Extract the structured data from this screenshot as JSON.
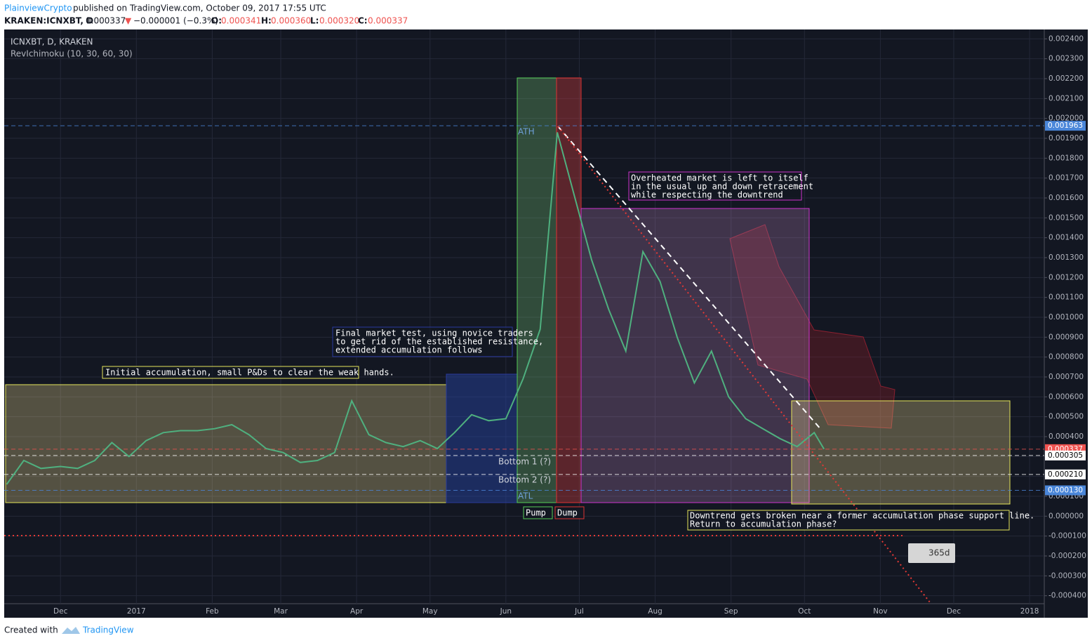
{
  "header": {
    "author": "PlainviewCrypto",
    "published": "published on TradingView.com, October 09, 2017 17:55 UTC",
    "symbol": "KRAKEN:ICNXBT, D",
    "last": "0.000337",
    "arrow": "▼",
    "change": "−0.000001 (−0.3%)",
    "o_label": "O:",
    "o": "0.000341",
    "h_label": "H:",
    "h": "0.000360",
    "l_label": "L:",
    "l": "0.000320",
    "c_label": "C:",
    "c": "0.000337"
  },
  "footer": {
    "created": "Created with",
    "brand": "TradingView"
  },
  "chart_data": {
    "type": "line",
    "title": "ICNXBT, D, KRAKEN",
    "subtitle": "RevIchimoku (10, 30, 60, 30)",
    "color": "#4fb07f",
    "x": [
      -22,
      -15,
      -8,
      0,
      7,
      14,
      21,
      28,
      35,
      42,
      49,
      56,
      63,
      70,
      77,
      84,
      91,
      98,
      105,
      112,
      119,
      126,
      133,
      140,
      147,
      154,
      161,
      168,
      175,
      182,
      189,
      196,
      203,
      210,
      217,
      224,
      231,
      238,
      245,
      252,
      259,
      266,
      273,
      280,
      287,
      294,
      301,
      308,
      312
    ],
    "values": [
      0.00016,
      0.00028,
      0.00024,
      0.00025,
      0.00024,
      0.00028,
      0.00037,
      0.0003,
      0.00038,
      0.00042,
      0.00043,
      0.00043,
      0.00044,
      0.00046,
      0.00041,
      0.00034,
      0.00032,
      0.00027,
      0.00028,
      0.00032,
      0.00058,
      0.00041,
      0.00037,
      0.00035,
      0.00038,
      0.00034,
      0.00042,
      0.00051,
      0.00048,
      0.00049,
      0.00069,
      0.00094,
      0.00193,
      0.00161,
      0.00129,
      0.00104,
      0.00083,
      0.00133,
      0.00118,
      0.0009,
      0.00067,
      0.00083,
      0.0006,
      0.00049,
      0.00044,
      0.00039,
      0.00035,
      0.00042,
      0.000337
    ],
    "xlim": [
      -23,
      402
    ],
    "xticks": [
      {
        "value": 0,
        "label": "Dec"
      },
      {
        "value": 31,
        "label": "2017"
      },
      {
        "value": 62,
        "label": "Feb"
      },
      {
        "value": 90,
        "label": "Mar"
      },
      {
        "value": 121,
        "label": "Apr"
      },
      {
        "value": 151,
        "label": "May"
      },
      {
        "value": 182,
        "label": "Jun"
      },
      {
        "value": 212,
        "label": "Jul"
      },
      {
        "value": 243,
        "label": "Aug"
      },
      {
        "value": 274,
        "label": "Sep"
      },
      {
        "value": 304,
        "label": "Oct"
      },
      {
        "value": 335,
        "label": "Nov"
      },
      {
        "value": 365,
        "label": "Dec"
      },
      {
        "value": 396,
        "label": "2018"
      }
    ],
    "ylim": [
      -0.00044,
      0.00244
    ],
    "yticks": [
      {
        "value": -0.0004,
        "label": "-0.000400"
      },
      {
        "value": -0.0003,
        "label": "-0.000300"
      },
      {
        "value": -0.0002,
        "label": "-0.000200"
      },
      {
        "value": -0.0001,
        "label": "-0.000100"
      },
      {
        "value": 0,
        "label": "0.000000"
      },
      {
        "value": 0.0001,
        "label": "0.000100"
      },
      {
        "value": 0.0002,
        "label": "0.000200"
      },
      {
        "value": 0.0003,
        "label": "0.000300"
      },
      {
        "value": 0.0004,
        "label": "0.000400"
      },
      {
        "value": 0.0005,
        "label": "0.000500"
      },
      {
        "value": 0.0006,
        "label": "0.000600"
      },
      {
        "value": 0.0007,
        "label": "0.000700"
      },
      {
        "value": 0.0008,
        "label": "0.000800"
      },
      {
        "value": 0.0009,
        "label": "0.000900"
      },
      {
        "value": 0.001,
        "label": "0.001000"
      },
      {
        "value": 0.0011,
        "label": "0.001100"
      },
      {
        "value": 0.0012,
        "label": "0.001200"
      },
      {
        "value": 0.0013,
        "label": "0.001300"
      },
      {
        "value": 0.0014,
        "label": "0.001400"
      },
      {
        "value": 0.0015,
        "label": "0.001500"
      },
      {
        "value": 0.0016,
        "label": "0.001600"
      },
      {
        "value": 0.0017,
        "label": "0.001700"
      },
      {
        "value": 0.0018,
        "label": "0.001800"
      },
      {
        "value": 0.0019,
        "label": "0.001900"
      },
      {
        "value": 0.002,
        "label": "0.002000"
      },
      {
        "value": 0.0021,
        "label": "0.002100"
      },
      {
        "value": 0.0022,
        "label": "0.002200"
      },
      {
        "value": 0.0023,
        "label": "0.002300"
      },
      {
        "value": 0.0024,
        "label": "0.002400"
      }
    ],
    "grid": true,
    "levels": [
      {
        "value": 0.001963,
        "label": "0.001963",
        "color": "#4a86d9",
        "text": "#ffffff"
      },
      {
        "value": 0.000337,
        "label": "0.000337",
        "color": "#ef5350",
        "text": "#ffffff"
      },
      {
        "value": 0.000305,
        "label": "0.000305",
        "color": "#ffffff",
        "text": "#000000"
      },
      {
        "value": 0.00021,
        "label": "0.000210",
        "color": "#ffffff",
        "text": "#000000"
      },
      {
        "value": 0.00013,
        "label": "0.000130",
        "color": "#4a86d9",
        "text": "#ffffff"
      }
    ],
    "annotations": {
      "initial": "Initial accumulation, small P&Ds to clear the weak hands.",
      "final": [
        "Final market test, using novice traders",
        "to get rid of the established resistance,",
        "extended accumulation follows"
      ],
      "overheated": [
        "Overheated market is left to itself",
        "in the usual up and down retracement",
        "while respecting the downtrend"
      ],
      "downtrend": [
        "Downtrend gets broken near a former accumulation phase support line.",
        "Return to accumulation phase?"
      ],
      "ath": "ATH",
      "atl": "ATL",
      "pump": "Pump",
      "dump": "Dump",
      "bottom1": "Bottom 1 (?)",
      "bottom2": "Bottom 2 (?)",
      "range": "365d"
    }
  }
}
